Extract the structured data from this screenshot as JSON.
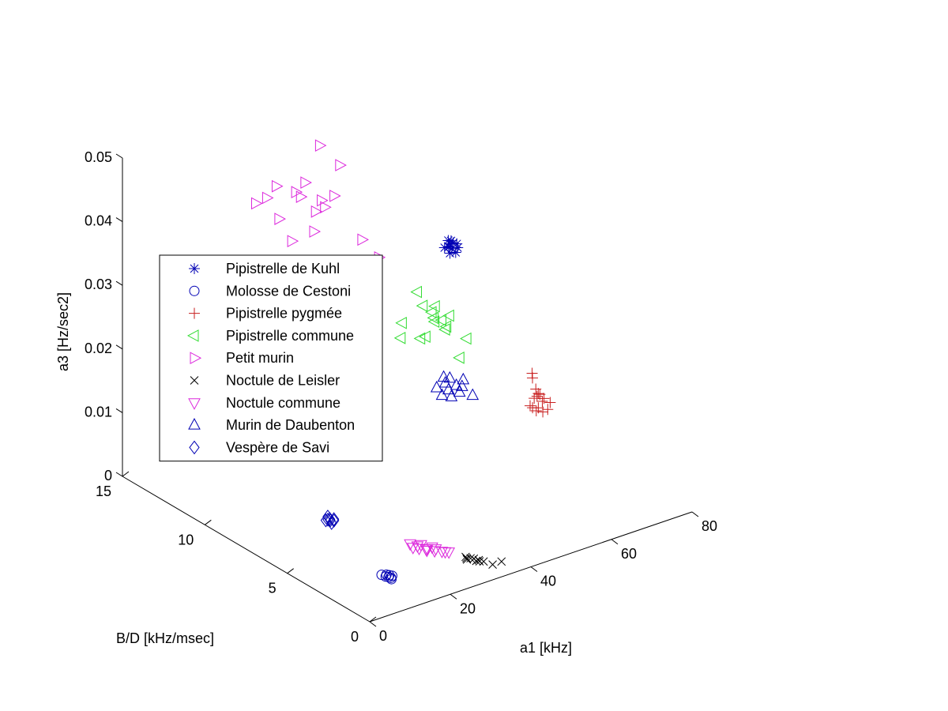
{
  "chart_data": {
    "type": "scatter",
    "projection": "3d",
    "title": "",
    "xlabel": "a1 [kHz]",
    "ylabel": "B/D [kHz/msec]",
    "zlabel": "a3 [Hz/sec2]",
    "xlim": [
      0,
      80
    ],
    "ylim": [
      0,
      15
    ],
    "zlim": [
      0,
      0.05
    ],
    "x_ticks": [
      "0",
      "20",
      "40",
      "60",
      "80"
    ],
    "y_ticks": [
      "0",
      "5",
      "10",
      "15"
    ],
    "z_ticks": [
      "0",
      "0.01",
      "0.02",
      "0.03",
      "0.04",
      "0.05"
    ],
    "grid": false,
    "legend_position": "left",
    "series": [
      {
        "name": "Pipistrelle de Kuhl",
        "marker": "asterisk",
        "color": "#0000b4",
        "points": [
          [
            46.2,
            6.5,
            0.039
          ],
          [
            46.6,
            6.4,
            0.0388
          ],
          [
            46.9,
            6.6,
            0.0392
          ],
          [
            47.3,
            6.5,
            0.0394
          ],
          [
            47.0,
            6.7,
            0.0386
          ],
          [
            46.4,
            6.8,
            0.0384
          ],
          [
            47.6,
            6.3,
            0.0389
          ],
          [
            46.7,
            6.2,
            0.0385
          ],
          [
            47.2,
            6.6,
            0.0396
          ],
          [
            46.1,
            6.4,
            0.0382
          ],
          [
            47.8,
            6.4,
            0.0393
          ],
          [
            46.5,
            6.6,
            0.0398
          ]
        ]
      },
      {
        "name": "Molosse de Cestoni",
        "marker": "circle",
        "color": "#0000b4",
        "points": [
          [
            14.6,
            2.6,
            0.0
          ],
          [
            14.9,
            2.5,
            0.0
          ],
          [
            15.2,
            2.7,
            0.0
          ],
          [
            15.5,
            2.6,
            0.0
          ],
          [
            14.4,
            2.8,
            0.0
          ],
          [
            15.8,
            2.5,
            0.0
          ],
          [
            15.1,
            2.4,
            0.0
          ],
          [
            14.8,
            2.3,
            0.0
          ]
        ]
      },
      {
        "name": "Pipistrelle pygmée",
        "marker": "plus",
        "color": "#c81e1e",
        "points": [
          [
            57.9,
            4.3,
            0.02
          ],
          [
            58.4,
            4.4,
            0.019
          ],
          [
            58.0,
            4.1,
            0.0178
          ],
          [
            58.6,
            4.0,
            0.017
          ],
          [
            58.2,
            4.0,
            0.0172
          ],
          [
            58.8,
            3.8,
            0.0166
          ],
          [
            58.3,
            4.1,
            0.0166
          ],
          [
            58.8,
            3.9,
            0.016
          ],
          [
            58.0,
            4.2,
            0.0162
          ],
          [
            58.1,
            3.7,
            0.0148
          ],
          [
            57.8,
            3.9,
            0.0152
          ],
          [
            57.6,
            4.2,
            0.0148
          ],
          [
            57.7,
            4.0,
            0.0146
          ],
          [
            57.4,
            4.3,
            0.015
          ],
          [
            58.5,
            3.5,
            0.0154
          ],
          [
            58.7,
            3.4,
            0.0166
          ]
        ]
      },
      {
        "name": "Pipistrelle commune",
        "marker": "triangle-left",
        "color": "#32dc32",
        "points": [
          [
            44.6,
            8.0,
            0.03
          ],
          [
            47.0,
            7.5,
            0.028
          ],
          [
            45.2,
            7.8,
            0.028
          ],
          [
            46.6,
            7.6,
            0.027
          ],
          [
            48.1,
            6.9,
            0.0272
          ],
          [
            47.1,
            7.6,
            0.026
          ],
          [
            47.4,
            7.2,
            0.0262
          ],
          [
            47.8,
            7.0,
            0.0254
          ],
          [
            47.5,
            7.0,
            0.025
          ],
          [
            46.9,
            7.5,
            0.0256
          ],
          [
            49.1,
            6.1,
            0.0246
          ],
          [
            43.3,
            8.6,
            0.0245
          ],
          [
            44.6,
            7.8,
            0.023
          ],
          [
            43.0,
            8.6,
            0.0222
          ],
          [
            45.9,
            7.8,
            0.023
          ],
          [
            49.0,
            6.5,
            0.021
          ]
        ]
      },
      {
        "name": "Petit murin",
        "marker": "triangle-right",
        "color": "#dc28dc",
        "points": [
          [
            23.4,
            11.4,
            0.046
          ],
          [
            32.2,
            9.7,
            0.05
          ],
          [
            30.9,
            10.6,
            0.052
          ],
          [
            26.2,
            9.7,
            0.044
          ],
          [
            31.6,
            9.9,
            0.045
          ],
          [
            26.6,
            11.0,
            0.045
          ],
          [
            28.9,
            11.0,
            0.046
          ],
          [
            27.8,
            11.0,
            0.044
          ],
          [
            30.1,
            10.3,
            0.044
          ],
          [
            32.8,
            8.5,
            0.04
          ],
          [
            27.4,
            10.1,
            0.04
          ],
          [
            25.3,
            11.7,
            0.04
          ],
          [
            22.4,
            12.4,
            0.042
          ],
          [
            24.8,
            10.8,
            0.038
          ],
          [
            29.4,
            9.0,
            0.036
          ],
          [
            29.7,
            9.0,
            0.035
          ],
          [
            34.1,
            7.8,
            0.038
          ],
          [
            30.5,
            10.2,
            0.043
          ],
          [
            23.9,
            12.1,
            0.043
          ]
        ]
      },
      {
        "name": "Noctule de Leisler",
        "marker": "cross",
        "color": "#000000",
        "points": [
          [
            31.9,
            1.9,
            0.0
          ],
          [
            32.4,
            2.1,
            0.0
          ],
          [
            32.8,
            1.9,
            0.0
          ],
          [
            33.0,
            1.6,
            0.0
          ],
          [
            33.4,
            1.5,
            0.0
          ],
          [
            33.2,
            1.8,
            0.0
          ],
          [
            33.6,
            1.6,
            0.0
          ],
          [
            34.6,
            1.0,
            0.0
          ],
          [
            32.2,
            2.0,
            0.0
          ],
          [
            34.0,
            1.4,
            0.0
          ],
          [
            36.8,
            1.0,
            0.0
          ]
        ]
      },
      {
        "name": "Noctule commune",
        "marker": "triangle-down",
        "color": "#dc28dc",
        "points": [
          [
            26.7,
            3.9,
            0.0
          ],
          [
            27.4,
            3.7,
            0.0
          ],
          [
            28.3,
            3.5,
            0.0
          ],
          [
            29.2,
            3.2,
            0.0
          ],
          [
            30.2,
            3.0,
            0.0
          ],
          [
            28.7,
            3.9,
            0.0
          ],
          [
            29.8,
            3.5,
            0.0
          ],
          [
            27.8,
            3.9,
            0.0
          ],
          [
            28.6,
            3.5,
            0.0
          ],
          [
            31.1,
            2.8,
            0.0
          ],
          [
            29.9,
            3.3,
            0.0
          ],
          [
            27.2,
            4.2,
            0.0
          ],
          [
            30.6,
            2.9,
            0.0
          ],
          [
            28.1,
            3.4,
            0.0
          ]
        ]
      },
      {
        "name": "Murin de Daubenton",
        "marker": "triangle-up",
        "color": "#0000b4",
        "points": [
          [
            42.9,
            6.0,
            0.02
          ],
          [
            43.6,
            5.8,
            0.02
          ],
          [
            44.4,
            5.6,
            0.019
          ],
          [
            45.0,
            5.4,
            0.019
          ],
          [
            45.3,
            5.4,
            0.02
          ],
          [
            43.3,
            6.0,
            0.019
          ],
          [
            44.8,
            5.5,
            0.018
          ],
          [
            42.4,
            6.3,
            0.018
          ],
          [
            43.7,
            5.9,
            0.018
          ],
          [
            44.0,
            5.8,
            0.017
          ],
          [
            46.0,
            5.0,
            0.018
          ],
          [
            42.9,
            6.1,
            0.017
          ]
        ]
      },
      {
        "name": "Vespère de Savi",
        "marker": "diamond",
        "color": "#0000b4",
        "points": [
          [
            20.2,
            7.6,
            0.0
          ],
          [
            20.7,
            7.6,
            0.0
          ],
          [
            21.2,
            7.6,
            0.0
          ],
          [
            21.5,
            7.8,
            0.0
          ],
          [
            20.4,
            7.3,
            0.0
          ],
          [
            21.8,
            7.5,
            0.0
          ],
          [
            20.9,
            7.5,
            0.0
          ],
          [
            21.4,
            7.4,
            0.0
          ]
        ]
      }
    ]
  }
}
